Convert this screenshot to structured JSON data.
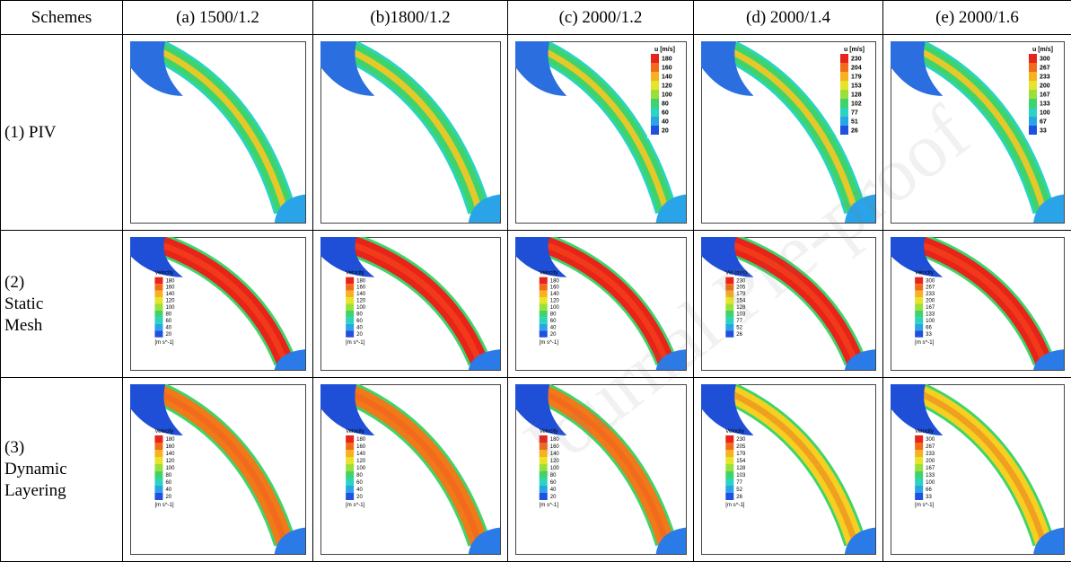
{
  "table": {
    "header": [
      "Schemes",
      "(a) 1500/1.2",
      "(b)1800/1.2",
      "(c) 2000/1.2",
      "(d) 2000/1.4",
      "(e) 2000/1.6"
    ],
    "rows": [
      {
        "label": [
          "(1) PIV"
        ],
        "cells": [
          {
            "legend": null
          },
          {
            "legend": null
          },
          {
            "legend": {
              "title": "u [m/s]",
              "ticks": [
                180,
                160,
                140,
                120,
                100,
                80,
                60,
                40,
                20
              ]
            }
          },
          {
            "legend": {
              "title": "u [m/s]",
              "ticks": [
                230,
                204,
                179,
                153,
                128,
                102,
                77,
                51,
                26
              ]
            }
          },
          {
            "legend": {
              "title": "u [m/s]",
              "ticks": [
                300,
                267,
                233,
                200,
                167,
                133,
                100,
                67,
                33
              ]
            }
          }
        ]
      },
      {
        "label": [
          "(2)",
          "Static",
          "Mesh"
        ],
        "cells": [
          {
            "legend": {
              "title": "Velocity",
              "ticks": [
                180,
                160,
                140,
                120,
                100,
                80,
                60,
                40,
                20
              ],
              "unit": "[m s^-1]"
            }
          },
          {
            "legend": {
              "title": "Velocity",
              "ticks": [
                180,
                160,
                140,
                120,
                100,
                80,
                60,
                40,
                20
              ],
              "unit": "[m s^-1]"
            }
          },
          {
            "legend": {
              "title": "Velocity",
              "ticks": [
                180,
                160,
                140,
                120,
                100,
                80,
                60,
                40,
                20
              ],
              "unit": "[m s^-1]"
            }
          },
          {
            "legend": {
              "title": "Vel (m/s)",
              "ticks": [
                230,
                205,
                179,
                154,
                128,
                103,
                77,
                52,
                26
              ]
            }
          },
          {
            "legend": {
              "title": "Velocity",
              "ticks": [
                300,
                267,
                233,
                200,
                167,
                133,
                100,
                66,
                33
              ],
              "unit": "[m s^-1]"
            }
          }
        ]
      },
      {
        "label": [
          "(3)",
          "Dynamic",
          "Layering"
        ],
        "cells": [
          {
            "legend": {
              "title": "Velocity",
              "ticks": [
                180,
                160,
                140,
                120,
                100,
                80,
                60,
                40,
                20
              ],
              "unit": "[m s^-1]"
            }
          },
          {
            "legend": {
              "title": "Velocity",
              "ticks": [
                180,
                160,
                140,
                120,
                100,
                80,
                60,
                40,
                20
              ],
              "unit": "[m s^-1]"
            }
          },
          {
            "legend": {
              "title": "Velocity",
              "ticks": [
                180,
                160,
                140,
                120,
                100,
                80,
                60,
                40,
                20
              ],
              "unit": "[m s^-1]"
            }
          },
          {
            "legend": {
              "title": "Velocity",
              "ticks": [
                230,
                205,
                179,
                154,
                128,
                103,
                77,
                52,
                26
              ],
              "unit": "[m s^-1]"
            }
          },
          {
            "legend": {
              "title": "Velocity",
              "ticks": [
                300,
                267,
                233,
                200,
                167,
                133,
                100,
                66,
                33
              ],
              "unit": "[m s^-1]"
            }
          }
        ]
      }
    ]
  },
  "watermark": "Journal Pre-proof"
}
